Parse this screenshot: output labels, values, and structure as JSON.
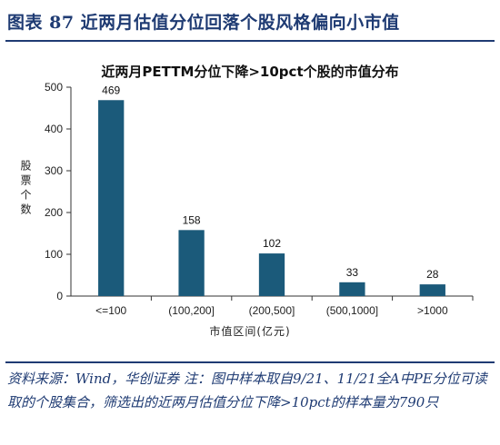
{
  "figure": {
    "title": "图表 87   近两月估值分位回落个股风格偏向小市值",
    "source": "资料来源：Wind，华创证券  注：图中样本取自9/21、11/21全A中PE分位可读取的个股集合，筛选出的近两月估值分位下降>10pct的样本量为790只"
  },
  "chart_data": {
    "type": "bar",
    "title": "近两月PETTM分位下降>10pct个股的市值分布",
    "xlabel": "市值区间(亿元)",
    "ylabel": "股票个数",
    "categories": [
      "<=100",
      "(100,200]",
      "(200,500]",
      "(500,1000]",
      ">1000"
    ],
    "values": [
      469,
      158,
      102,
      33,
      28
    ],
    "data_labels": [
      "469",
      "158",
      "102",
      "33",
      "28"
    ],
    "ylim": [
      0,
      500
    ],
    "yticks": [
      "0",
      "100",
      "200",
      "300",
      "400",
      "500"
    ],
    "bar_color": "#1b5a7a",
    "grid": false,
    "legend": "none"
  }
}
